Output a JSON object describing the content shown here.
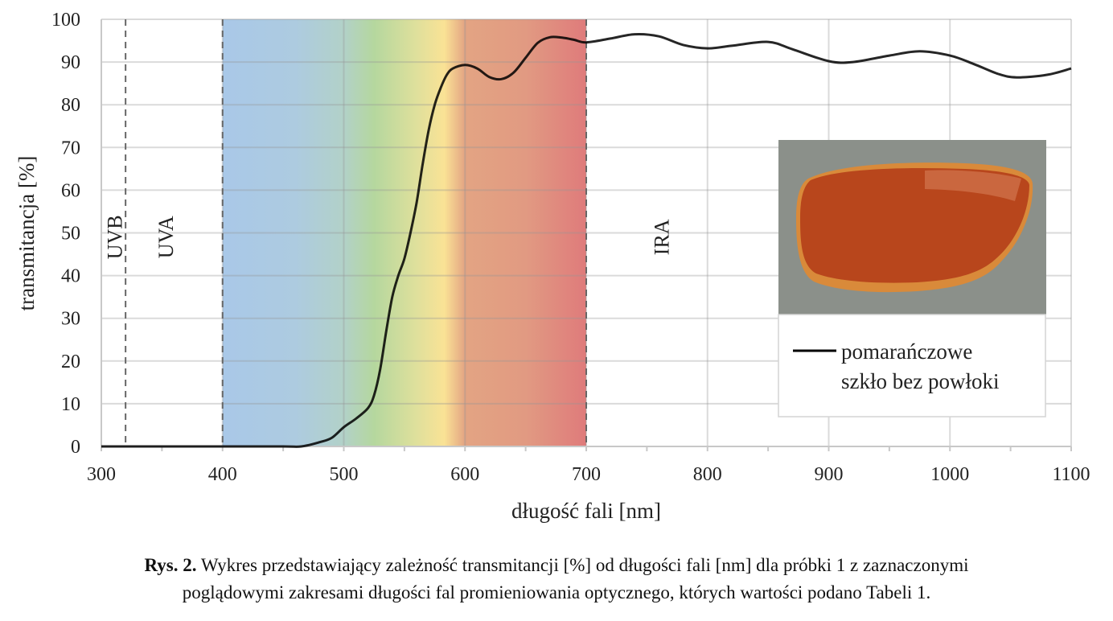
{
  "chart_data": {
    "type": "line",
    "xlabel": "długość fali [nm]",
    "ylabel": "transmitancja [%]",
    "xlim": [
      300,
      1100
    ],
    "ylim": [
      0,
      100
    ],
    "x_ticks": [
      300,
      400,
      500,
      600,
      700,
      800,
      900,
      1000,
      1100
    ],
    "y_ticks": [
      0,
      10,
      20,
      30,
      40,
      50,
      60,
      70,
      80,
      90,
      100
    ],
    "grid": true,
    "legend_position": "right",
    "bands": [
      {
        "label": "UVB",
        "from": 300,
        "to": 320
      },
      {
        "label": "UVA",
        "from": 320,
        "to": 400
      },
      {
        "label": "",
        "from": 400,
        "to": 700,
        "kind": "visible-spectrum"
      },
      {
        "label": "IRA",
        "from": 700,
        "to": 1100
      }
    ],
    "band_boundaries": [
      320,
      400,
      700
    ],
    "spectrum_colors": [
      {
        "nm": 400,
        "color": "#a9c8e8"
      },
      {
        "nm": 460,
        "color": "#adcbe0"
      },
      {
        "nm": 500,
        "color": "#b2d1c8"
      },
      {
        "nm": 525,
        "color": "#b5d79e"
      },
      {
        "nm": 560,
        "color": "#dfe09c"
      },
      {
        "nm": 583,
        "color": "#fae295"
      },
      {
        "nm": 600,
        "color": "#e3a483"
      },
      {
        "nm": 650,
        "color": "#e19a82"
      },
      {
        "nm": 700,
        "color": "#df7b7b"
      }
    ],
    "series": [
      {
        "name": "pomarańczowe szkło bez powłoki",
        "color": "#000000",
        "x": [
          300,
          350,
          400,
          450,
          465,
          480,
          490,
          500,
          510,
          520,
          525,
          530,
          535,
          540,
          545,
          550,
          555,
          560,
          565,
          570,
          575,
          580,
          585,
          590,
          600,
          610,
          620,
          630,
          640,
          650,
          660,
          670,
          680,
          690,
          700,
          720,
          740,
          760,
          780,
          800,
          820,
          850,
          870,
          900,
          920,
          950,
          975,
          1000,
          1020,
          1040,
          1055,
          1080,
          1100
        ],
        "y": [
          0,
          0,
          0,
          0,
          0,
          1,
          2,
          4.5,
          6.5,
          9,
          12,
          18,
          27,
          35,
          40,
          44,
          50,
          57,
          66,
          74,
          80,
          84,
          87,
          88.5,
          89.3,
          88.5,
          86.5,
          86,
          87.5,
          91,
          94.5,
          95.8,
          95.7,
          95.2,
          94.6,
          95.5,
          96.5,
          96,
          94,
          93.2,
          93.8,
          94.7,
          93,
          90.2,
          90,
          91.5,
          92.5,
          91.5,
          89.5,
          87.2,
          86.4,
          87,
          88.5
        ]
      }
    ],
    "legend": {
      "line1": "pomarańczowe",
      "line2": "szkło bez powłoki"
    },
    "inset": {
      "description": "photo of orange lens",
      "background_color": "#8b908a",
      "lens_color": "#b8461c",
      "lens_edge_color": "#d98a3a"
    }
  },
  "caption": {
    "label": "Rys. 2.",
    "line1": "Wykres przedstawiający zależność transmitancji [%] od długości fali [nm] dla próbki 1 z zaznaczonymi",
    "line2": "poglądowymi zakresami długości fal promieniowania optycznego, których wartości podano Tabeli 1."
  }
}
